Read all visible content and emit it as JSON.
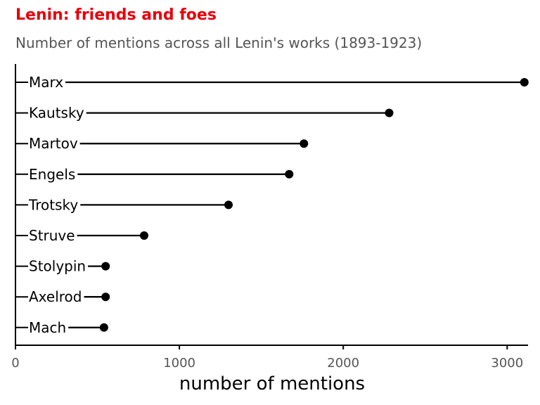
{
  "chart_data": {
    "type": "lollipop",
    "title": "Lenin: friends and foes",
    "subtitle": "Number of mentions across all Lenin's works (1893-1923)",
    "xlabel": "number of mentions",
    "ylabel": "",
    "xlim": [
      0,
      3100
    ],
    "xticks": [
      0,
      1000,
      2000,
      3000
    ],
    "grid": false,
    "legend": "none",
    "categories": [
      "Marx",
      "Kautsky",
      "Martov",
      "Engels",
      "Trotsky",
      "Struve",
      "Stolypin",
      "Axelrod",
      "Mach"
    ],
    "values": [
      3105,
      2280,
      1760,
      1670,
      1300,
      785,
      550,
      550,
      540
    ],
    "colors": {
      "title": "#e8000b",
      "subtitle": "#555555",
      "marks": "#000000"
    }
  }
}
